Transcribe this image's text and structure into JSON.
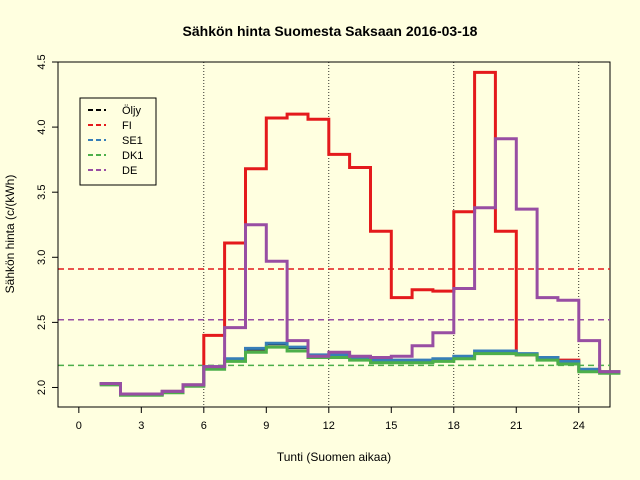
{
  "chart_data": {
    "type": "line",
    "title": "Sähkön hinta Suomesta Saksaan 2016-03-18",
    "xlabel": "Tunti (Suomen aikaa)",
    "ylabel": "Sähkön hinta (c/(kWh)",
    "xlim": [
      -1,
      25.5
    ],
    "ylim": [
      1.85,
      4.5
    ],
    "xticks": [
      "0",
      "3",
      "6",
      "9",
      "12",
      "15",
      "18",
      "21",
      "24"
    ],
    "yticks": [
      "2.0",
      "2.5",
      "3.0",
      "3.5",
      "4.0",
      "4.5"
    ],
    "vlines": [
      6,
      12,
      18,
      24
    ],
    "vlines_extra": [
      9,
      15,
      21
    ],
    "legend_position": "top-left",
    "hours": [
      1,
      2,
      3,
      4,
      5,
      6,
      7,
      8,
      9,
      10,
      11,
      12,
      13,
      14,
      15,
      16,
      17,
      18,
      19,
      20,
      21,
      22,
      23,
      24,
      25
    ],
    "series": [
      {
        "name": "Öljy",
        "color": "#000000",
        "lw": 1.5,
        "hline": null,
        "values": [
          2.03,
          1.95,
          1.95,
          1.97,
          2.02,
          2.15,
          2.21,
          2.29,
          2.33,
          2.3,
          2.25,
          2.25,
          2.23,
          2.21,
          2.21,
          2.21,
          2.22,
          2.24,
          2.27,
          2.27,
          2.26,
          2.23,
          2.2,
          2.14,
          2.12
        ]
      },
      {
        "name": "FI",
        "color": "#e41a1c",
        "lw": 3,
        "hline": 2.91,
        "values": [
          2.03,
          1.95,
          1.95,
          1.97,
          2.02,
          2.4,
          3.11,
          3.68,
          4.07,
          4.1,
          4.06,
          3.79,
          3.69,
          3.2,
          2.69,
          2.75,
          2.74,
          3.35,
          4.42,
          3.2,
          2.25,
          2.23,
          2.21,
          2.13,
          2.12
        ]
      },
      {
        "name": "SE1",
        "color": "#377eb8",
        "lw": 3,
        "hline": null,
        "values": [
          2.03,
          1.95,
          1.95,
          1.97,
          2.02,
          2.16,
          2.22,
          2.3,
          2.34,
          2.31,
          2.25,
          2.25,
          2.23,
          2.21,
          2.21,
          2.21,
          2.22,
          2.24,
          2.28,
          2.28,
          2.26,
          2.23,
          2.2,
          2.14,
          2.12
        ]
      },
      {
        "name": "DK1",
        "color": "#4daf4a",
        "lw": 3,
        "hline": 2.17,
        "values": [
          2.02,
          1.94,
          1.94,
          1.96,
          2.01,
          2.14,
          2.2,
          2.27,
          2.31,
          2.28,
          2.23,
          2.23,
          2.21,
          2.19,
          2.19,
          2.19,
          2.2,
          2.22,
          2.26,
          2.26,
          2.25,
          2.21,
          2.18,
          2.12,
          2.11
        ]
      },
      {
        "name": "DE",
        "color": "#984ea3",
        "lw": 3,
        "hline": 2.52,
        "values": [
          2.03,
          1.95,
          1.95,
          1.97,
          2.02,
          2.16,
          2.46,
          3.25,
          2.97,
          2.36,
          2.24,
          2.27,
          2.24,
          2.23,
          2.24,
          2.32,
          2.42,
          2.76,
          3.38,
          3.91,
          3.37,
          2.69,
          2.67,
          2.36,
          2.12
        ]
      }
    ]
  }
}
